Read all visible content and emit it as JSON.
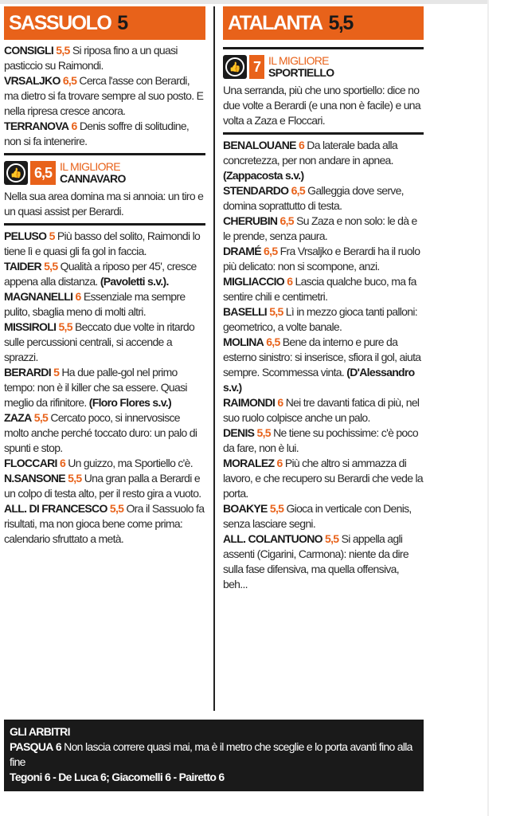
{
  "sassuolo": {
    "team": "SASSUOLO",
    "rating": "5",
    "top_entries": [
      {
        "name": "CONSIGLI",
        "rating": "5,5",
        "text": "Si riposa fino a un quasi pasticcio su Raimondi."
      },
      {
        "name": "VRSALJKO",
        "rating": "6,5",
        "text": "Cerca l'asse con Berardi, ma dietro si fa trovare sempre al suo posto. E nella ripresa cresce ancora."
      },
      {
        "name": "TERRANOVA",
        "rating": "6",
        "text": "Denis soffre di solitudine, non si fa intenerire."
      }
    ],
    "best": {
      "icon": "thumbs-up-icon",
      "rating": "6,5",
      "kicker": "IL MIGLIORE",
      "name": "CANNAVARO",
      "text": "Nella sua area domina ma si annoia: un tiro e un quasi assist per Berardi."
    },
    "entries": [
      {
        "name": "PELUSO",
        "rating": "5",
        "text": "Più basso del solito, Raimondi lo tiene lì e quasi gli fa gol in faccia."
      },
      {
        "name": "TAIDER",
        "rating": "5,5",
        "text": "Qualità a riposo per 45', cresce appena alla distanza.",
        "sub": "(Pavoletti s.v.)."
      },
      {
        "name": "MAGNANELLI",
        "rating": "6",
        "text": "Essenziale ma sempre pulito, sbaglia meno di molti altri."
      },
      {
        "name": "MISSIROLI",
        "rating": "5,5",
        "text": "Beccato due volte in ritardo sulle percussioni centrali, si accende a sprazzi."
      },
      {
        "name": "BERARDI",
        "rating": "5",
        "text": "Ha due palle-gol nel primo tempo: non è il killer che sa essere. Quasi meglio da rifinitore.",
        "sub": "(Floro Flores s.v.)"
      },
      {
        "name": "ZAZA",
        "rating": "5,5",
        "text": "Cercato poco, si innervosisce molto anche perché toccato duro: un palo di spunti e stop."
      },
      {
        "name": "FLOCCARI",
        "rating": "6",
        "text": "Un guizzo, ma Sportiello c'è."
      },
      {
        "name": "N.SANSONE",
        "rating": "5,5",
        "text": "Una gran palla a Berardi e un colpo di testa alto, per il resto gira a vuoto."
      },
      {
        "name": "ALL. DI FRANCESCO",
        "rating": "5,5",
        "text": "Ora il Sassuolo fa risultati, ma non gioca bene come prima: calendario sfruttato a metà."
      }
    ]
  },
  "atalanta": {
    "team": "ATALANTA",
    "rating": "5,5",
    "best": {
      "icon": "thumbs-up-icon",
      "rating": "7",
      "kicker": "IL MIGLIORE",
      "name": "SPORTIELLO",
      "text": "Una serranda, più che uno sportiello: dice no due volte a Berardi (e una non è facile) e una volta a Zaza e Floccari."
    },
    "entries": [
      {
        "name": "BENALOUANE",
        "rating": "6",
        "text": "Da laterale bada alla concretezza, per non andare in apnea.",
        "sub": "(Zappacosta s.v.)"
      },
      {
        "name": "STENDARDO",
        "rating": "6,5",
        "text": "Galleggia dove serve, domina soprattutto di testa."
      },
      {
        "name": "CHERUBIN",
        "rating": "6,5",
        "text": "Su Zaza e non solo: le dà e le prende, senza paura."
      },
      {
        "name": "DRAMÉ",
        "rating": "6,5",
        "text": "Fra Vrsaljko e Berardi ha il ruolo più delicato: non si scompone, anzi."
      },
      {
        "name": "MIGLIACCIO",
        "rating": "6",
        "text": "Lascia qualche buco, ma fa sentire chili e centimetri."
      },
      {
        "name": "BASELLI",
        "rating": "5,5",
        "text": "Lì in mezzo gioca tanti palloni: geometrico, a volte banale."
      },
      {
        "name": "MOLINA",
        "rating": "6,5",
        "text": "Bene da interno e pure da esterno sinistro: si inserisce, sfiora il gol, aiuta sempre. Scommessa vinta.",
        "sub": "(D'Alessandro s.v.)"
      },
      {
        "name": "RAIMONDI",
        "rating": "6",
        "text": "Nei tre davanti fatica di più, nel suo ruolo colpisce anche un palo."
      },
      {
        "name": "DENIS",
        "rating": "5,5",
        "text": "Ne tiene su pochissime: c'è poco da fare, non è lui."
      },
      {
        "name": "MORALEZ",
        "rating": "6",
        "text": "Più che altro si ammazza di lavoro, e che recupero su Berardi che vede la porta."
      },
      {
        "name": "BOAKYE",
        "rating": "5,5",
        "text": "Gioca in verticale con Denis, senza lasciare segni."
      },
      {
        "name": "ALL. COLANTUONO",
        "rating": "5,5",
        "text": "Si appella agli assenti (Cigarini, Carmona): niente da dire sulla fase difensiva, ma quella offensiva, beh..."
      }
    ]
  },
  "referees": {
    "title": "GLI ARBITRI",
    "name": "PASQUA",
    "rating": "6",
    "text": "Non lascia correre quasi mai, ma è il metro che sceglie e lo porta avanti fino alla fine",
    "assistants": "Tegoni 6 - De Luca 6; Giacomelli 6 - Pairetto 6"
  },
  "colors": {
    "accent": "#e8621a",
    "dark": "#1a1a1a"
  }
}
